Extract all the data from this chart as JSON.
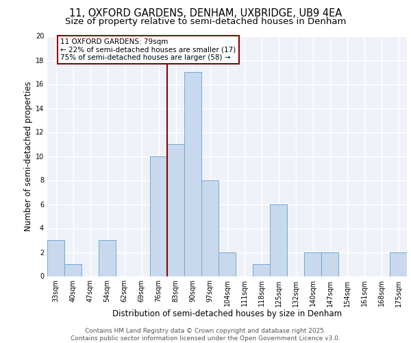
{
  "title_line1": "11, OXFORD GARDENS, DENHAM, UXBRIDGE, UB9 4EA",
  "title_line2": "Size of property relative to semi-detached houses in Denham",
  "xlabel": "Distribution of semi-detached houses by size in Denham",
  "ylabel": "Number of semi-detached properties",
  "categories": [
    "33sqm",
    "40sqm",
    "47sqm",
    "54sqm",
    "62sqm",
    "69sqm",
    "76sqm",
    "83sqm",
    "90sqm",
    "97sqm",
    "104sqm",
    "111sqm",
    "118sqm",
    "125sqm",
    "132sqm",
    "140sqm",
    "147sqm",
    "154sqm",
    "161sqm",
    "168sqm",
    "175sqm"
  ],
  "values": [
    3,
    1,
    0,
    3,
    0,
    0,
    10,
    11,
    17,
    8,
    2,
    0,
    1,
    6,
    0,
    2,
    2,
    0,
    0,
    0,
    2
  ],
  "bar_color": "#c9d9ed",
  "bar_edge_color": "#6fa8d0",
  "vline_x": 6.5,
  "vline_color": "#8b0000",
  "annotation_text": "11 OXFORD GARDENS: 79sqm\n← 22% of semi-detached houses are smaller (17)\n75% of semi-detached houses are larger (58) →",
  "annotation_box_color": "#8b0000",
  "ylim": [
    0,
    20
  ],
  "yticks": [
    0,
    2,
    4,
    6,
    8,
    10,
    12,
    14,
    16,
    18,
    20
  ],
  "footer_text": "Contains HM Land Registry data © Crown copyright and database right 2025.\nContains public sector information licensed under the Open Government Licence v3.0.",
  "background_color": "#eef2f8",
  "grid_color": "#ffffff",
  "title_fontsize": 10.5,
  "subtitle_fontsize": 9.5,
  "tick_fontsize": 7,
  "label_fontsize": 8.5,
  "footer_fontsize": 6.5,
  "annot_fontsize": 7.5
}
